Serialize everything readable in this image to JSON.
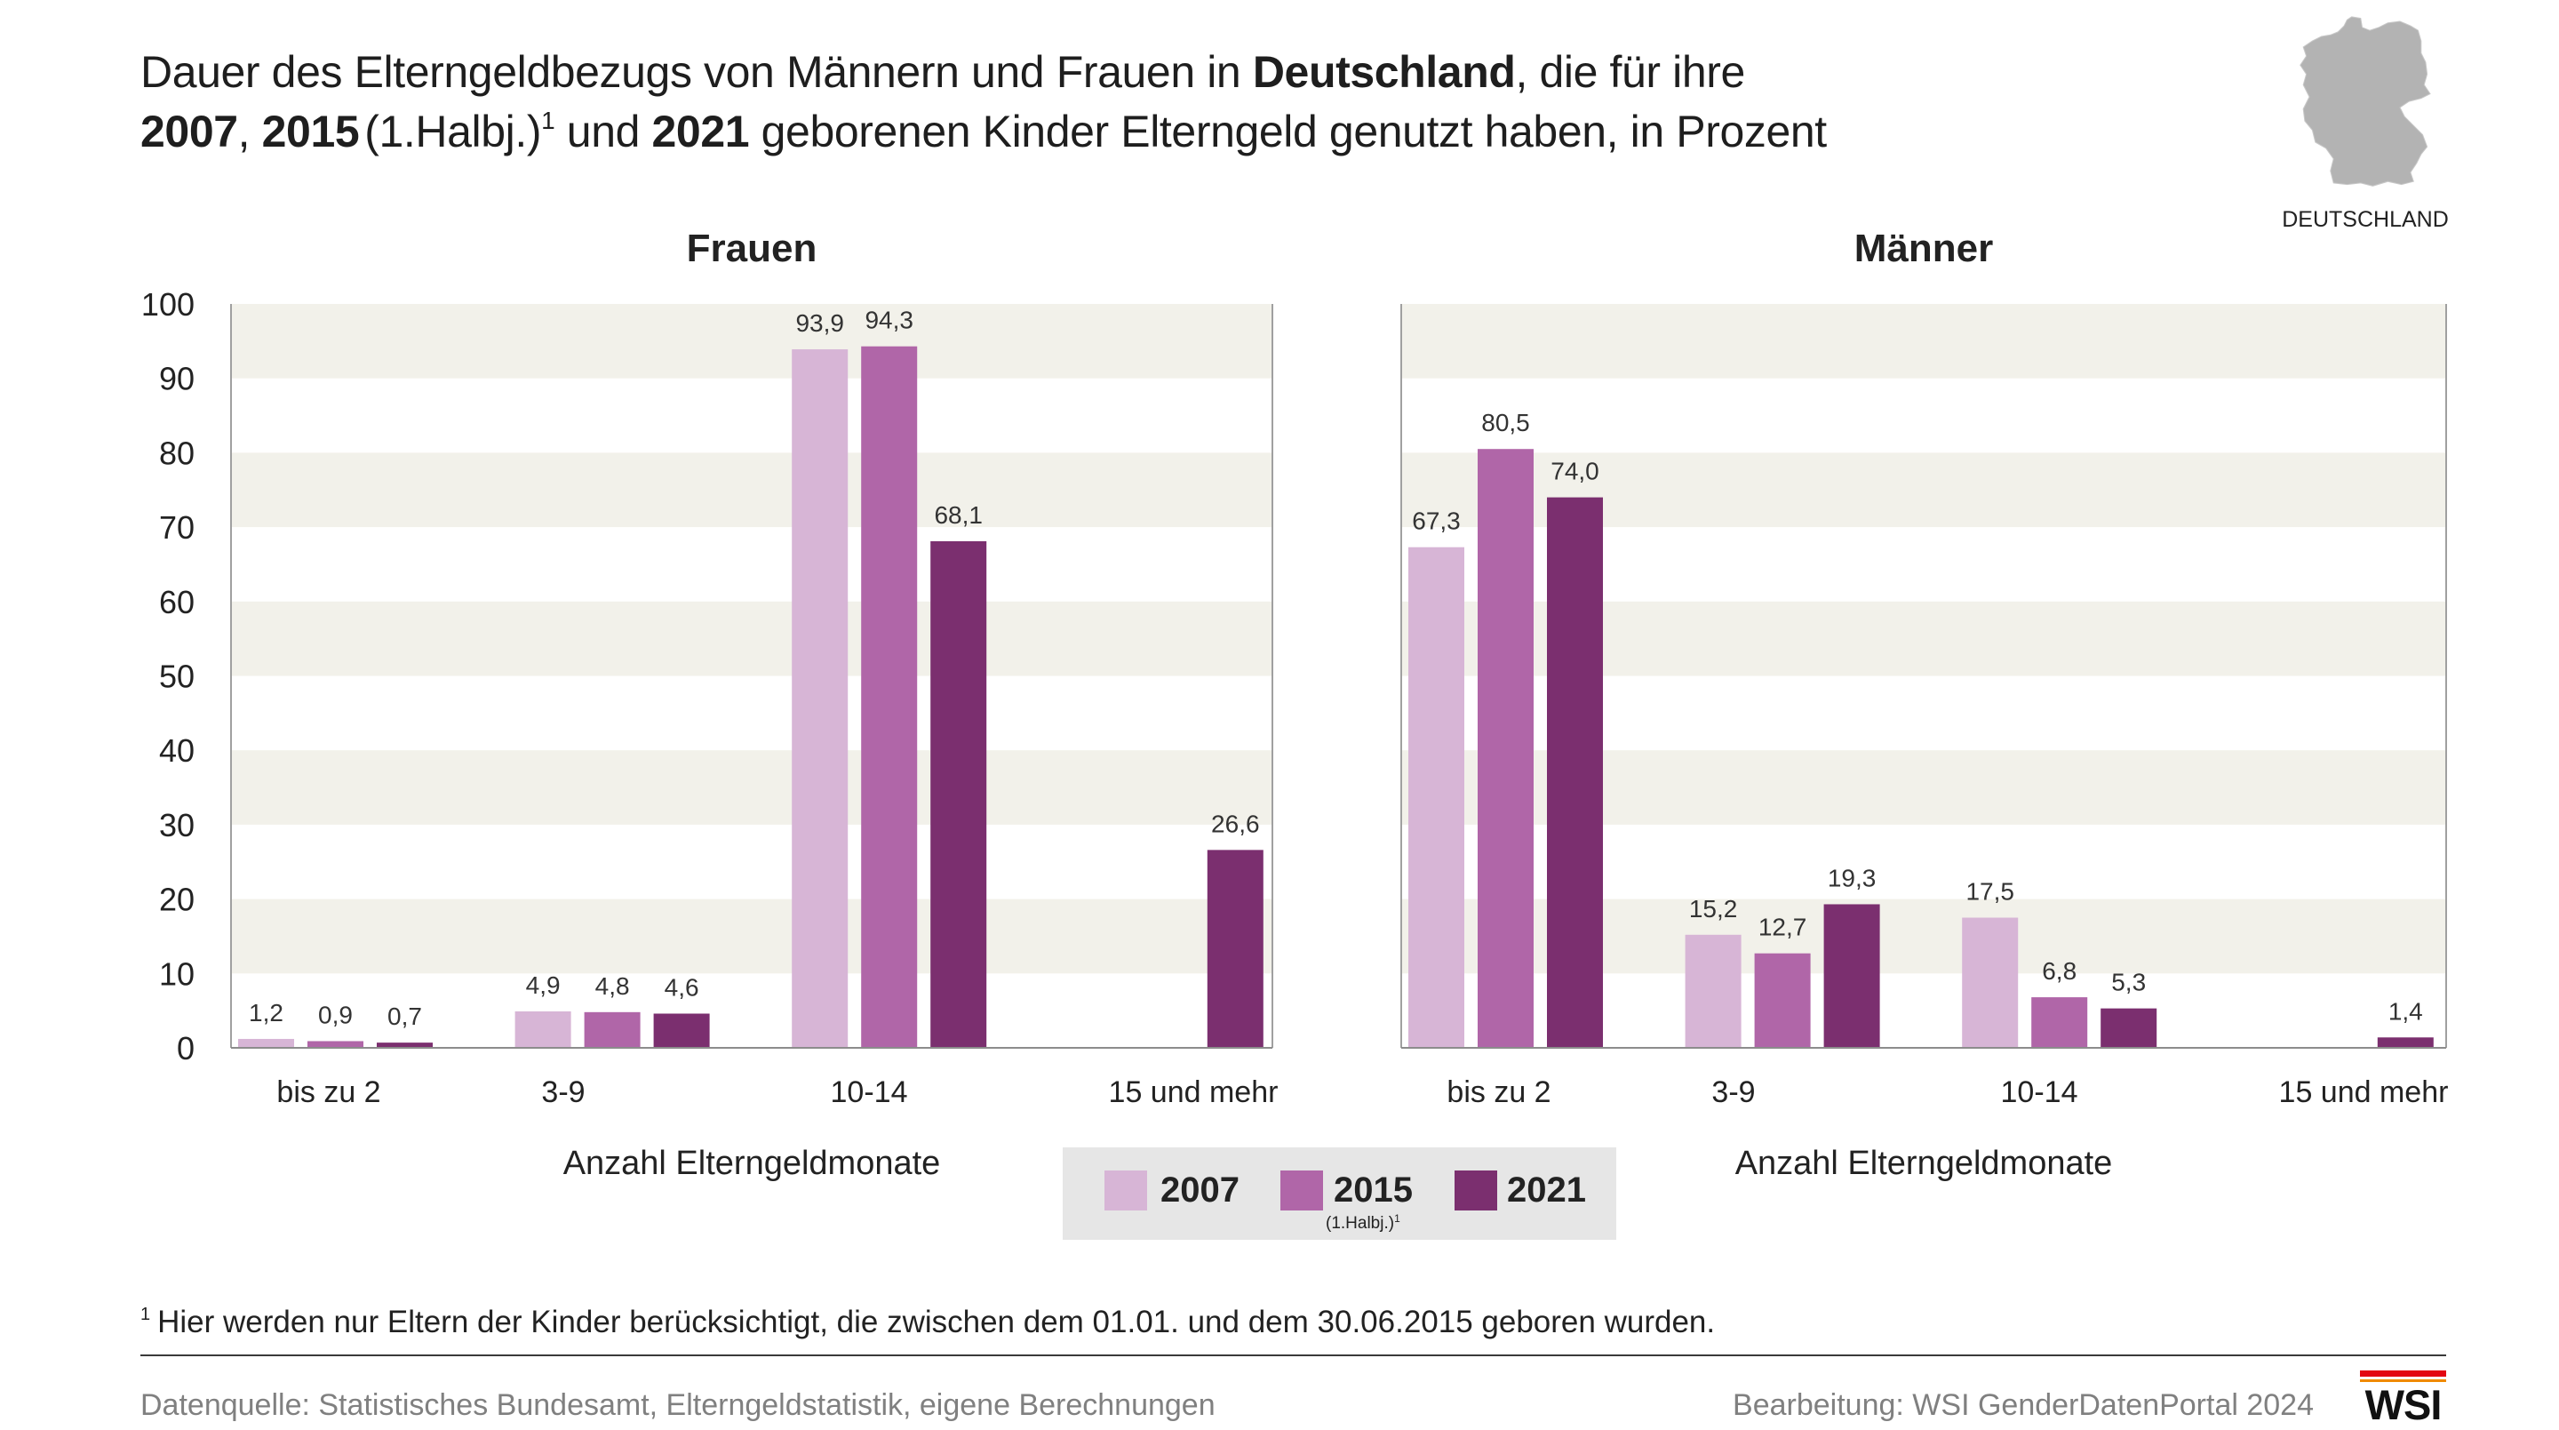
{
  "title": {
    "line1": {
      "a": "Dauer des Elterngeldbezugs von Männern und Frauen in ",
      "b_bold": "Deutschland",
      "c": ", die für ihre"
    },
    "line2": {
      "y1_bold": "2007",
      "sep": ", ",
      "y2_bold": "2015",
      "y2_note": "(1.Halbj.)",
      "y2_sup": "1",
      "mid": " und ",
      "y3_bold": "2021",
      "end": " geborenen Kinder Elterngeld genutzt haben, in Prozent"
    }
  },
  "map": {
    "icon": "germany-map-icon",
    "label": "DEUTSCHLAND",
    "color": "#b3b3b3"
  },
  "chart_data": {
    "type": "bar",
    "xlabel": "Anzahl Elterngeldmonate",
    "ylabel": "",
    "categories": [
      "bis zu 2",
      "3-9",
      "10-14",
      "15 und mehr"
    ],
    "ylim": [
      0,
      100
    ],
    "yticks": [
      0,
      10,
      20,
      30,
      40,
      50,
      60,
      70,
      80,
      90,
      100
    ],
    "grid": true,
    "series": [
      {
        "name": "2007",
        "color": "#d7b5d6"
      },
      {
        "name": "2015",
        "note": "(1.Halbj.)",
        "note_sup": "1",
        "color": "#b066a8"
      },
      {
        "name": "2021",
        "color": "#7b2f6f"
      }
    ],
    "panels": [
      {
        "title": "Frauen",
        "values": [
          [
            1.2,
            4.9,
            93.9,
            null
          ],
          [
            0.9,
            4.8,
            94.3,
            null
          ],
          [
            0.7,
            4.6,
            68.1,
            26.6
          ]
        ]
      },
      {
        "title": "Männer",
        "values": [
          [
            67.3,
            15.2,
            17.5,
            null
          ],
          [
            80.5,
            12.7,
            6.8,
            null
          ],
          [
            74.0,
            19.3,
            5.3,
            1.4
          ]
        ]
      }
    ]
  },
  "footnote": {
    "marker": "1",
    "text": "Hier werden nur Eltern der Kinder berücksichtigt, die zwischen dem 01.01. und dem 30.06.2015 geboren wurden."
  },
  "source": "Datenquelle: Statistisches Bundesamt, Elterngeldstatistik, eigene Berechnungen",
  "credit": "Bearbeitung: WSI GenderDatenPortal 2024",
  "logo": {
    "icon": "wsi-logo-icon",
    "text": "WSI",
    "accent": "#e30613"
  }
}
